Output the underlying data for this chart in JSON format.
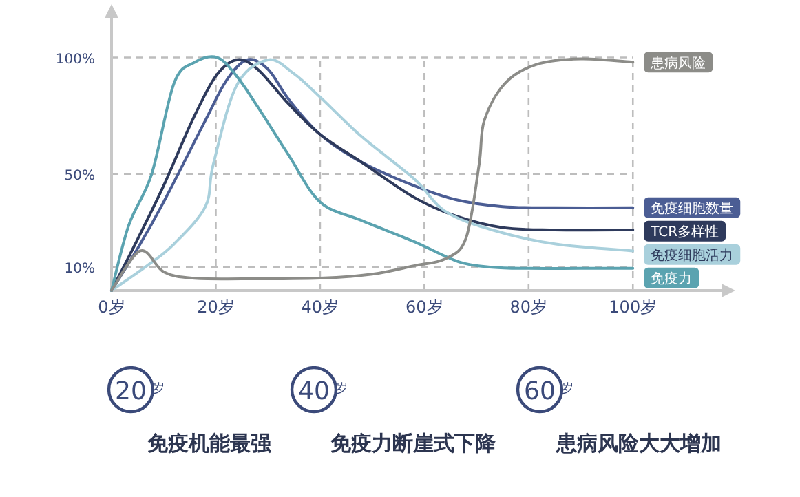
{
  "chart_data": {
    "type": "line",
    "xlim": [
      0,
      117
    ],
    "ylim": [
      0,
      117
    ],
    "xticks": [
      {
        "value": 0,
        "label": "0岁"
      },
      {
        "value": 20,
        "label": "20岁"
      },
      {
        "value": 40,
        "label": "40岁"
      },
      {
        "value": 60,
        "label": "60岁"
      },
      {
        "value": 80,
        "label": "80岁"
      },
      {
        "value": 100,
        "label": "100岁"
      }
    ],
    "yticks": [
      {
        "value": 10,
        "label": "10%"
      },
      {
        "value": 50,
        "label": "50%"
      },
      {
        "value": 100,
        "label": "100%"
      }
    ],
    "grid": true,
    "marker": "none",
    "line_style": "solid",
    "series": [
      {
        "name": "免疫细胞数量",
        "color": "#4b5d94",
        "x": [
          0,
          5,
          10,
          18,
          22,
          26,
          30,
          34,
          40,
          48,
          58,
          66,
          75,
          85,
          100
        ],
        "values": [
          0,
          18,
          38,
          73,
          90,
          99,
          95,
          82,
          67,
          55,
          45,
          39,
          36,
          35.5,
          35.5
        ]
      },
      {
        "name": "TCR多样性",
        "color": "#2e3a5c",
        "x": [
          0,
          5,
          10,
          15.5,
          20,
          24,
          28,
          34,
          40,
          48,
          58,
          66,
          75,
          85,
          100
        ],
        "values": [
          0,
          22,
          45,
          73,
          92,
          99,
          95,
          80,
          67,
          55,
          40,
          32,
          27,
          26,
          26
        ]
      },
      {
        "name": "免疫细胞活力",
        "color": "#a9d0dc",
        "x": [
          0,
          6.8,
          12,
          18,
          19.5,
          24,
          30,
          35,
          40,
          48,
          58,
          64,
          73,
          85,
          100
        ],
        "values": [
          0,
          10.6,
          20,
          36,
          54,
          88,
          99,
          93,
          83,
          66,
          48,
          34,
          26,
          20,
          17
        ]
      },
      {
        "name": "免疫力",
        "color": "#5ba3b0",
        "x": [
          0,
          3.3,
          7.7,
          12,
          16,
          20.3,
          24,
          28,
          34,
          40,
          48,
          58,
          66.5,
          73,
          80,
          90,
          100
        ],
        "values": [
          0,
          28,
          50,
          89,
          98,
          100,
          92,
          79,
          58,
          38,
          30,
          21,
          12.4,
          10,
          9.5,
          9.5,
          9.5
        ]
      },
      {
        "name": "患病风险",
        "color": "#8c8c88",
        "x": [
          0,
          5.5,
          10,
          15.5,
          25,
          40,
          50,
          58,
          64,
          68,
          70.5,
          71.5,
          75.5,
          81.5,
          90,
          100
        ],
        "values": [
          0,
          17,
          8,
          5.3,
          5,
          5.3,
          7,
          10.6,
          13.6,
          22.5,
          54,
          73,
          89,
          97,
          99.4,
          98
        ]
      }
    ],
    "annotations": [
      "20$^{岁}$",
      "免疫机能最强",
      "40$^{岁}$",
      "免疫力断崖式下降",
      "60$^{岁}$",
      "患病风险大大增加"
    ]
  }
}
